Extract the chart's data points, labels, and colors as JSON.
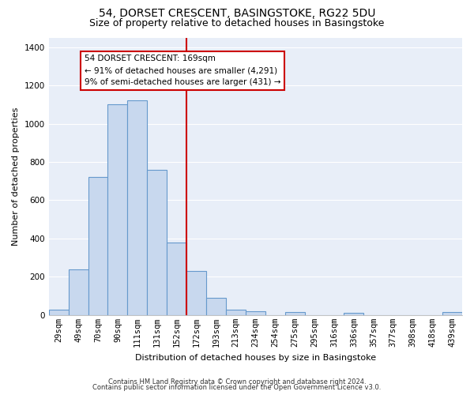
{
  "title": "54, DORSET CRESCENT, BASINGSTOKE, RG22 5DU",
  "subtitle": "Size of property relative to detached houses in Basingstoke",
  "xlabel": "Distribution of detached houses by size in Basingstoke",
  "ylabel": "Number of detached properties",
  "bar_labels": [
    "29sqm",
    "49sqm",
    "70sqm",
    "90sqm",
    "111sqm",
    "131sqm",
    "152sqm",
    "172sqm",
    "193sqm",
    "213sqm",
    "234sqm",
    "254sqm",
    "275sqm",
    "295sqm",
    "316sqm",
    "336sqm",
    "357sqm",
    "377sqm",
    "398sqm",
    "418sqm",
    "439sqm"
  ],
  "bar_values": [
    30,
    240,
    720,
    1100,
    1120,
    760,
    380,
    230,
    90,
    30,
    20,
    0,
    15,
    0,
    0,
    10,
    0,
    0,
    0,
    0,
    15
  ],
  "bar_color": "#c8d8ee",
  "bar_edge_color": "#6699cc",
  "vline_index": 7,
  "vline_color": "#cc0000",
  "annotation_title": "54 DORSET CRESCENT: 169sqm",
  "annotation_line1": "← 91% of detached houses are smaller (4,291)",
  "annotation_line2": "9% of semi-detached houses are larger (431) →",
  "annotation_box_facecolor": "#ffffff",
  "annotation_box_edgecolor": "#cc0000",
  "ylim": [
    0,
    1450
  ],
  "yticks": [
    0,
    200,
    400,
    600,
    800,
    1000,
    1200,
    1400
  ],
  "footnote1": "Contains HM Land Registry data © Crown copyright and database right 2024.",
  "footnote2": "Contains public sector information licensed under the Open Government Licence v3.0.",
  "background_color": "#ffffff",
  "axes_bg_color": "#e8eef8",
  "grid_color": "#ffffff",
  "title_fontsize": 10,
  "subtitle_fontsize": 9,
  "label_fontsize": 8,
  "tick_fontsize": 7.5,
  "footnote_fontsize": 6
}
